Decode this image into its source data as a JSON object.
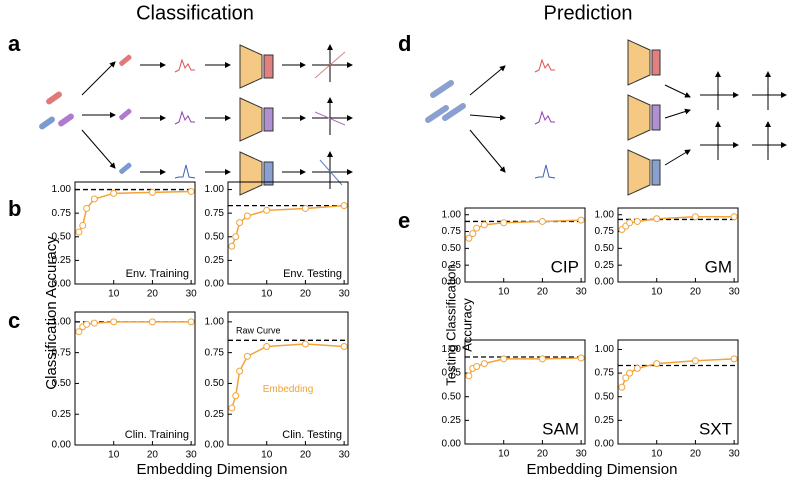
{
  "titles": {
    "left": "Classification",
    "right": "Prediction"
  },
  "panels": {
    "a": "a",
    "b": "b",
    "c": "c",
    "d": "d",
    "e": "e"
  },
  "axis_labels": {
    "left_y": "Classification Accuracy",
    "left_x": "Embedding Dimension",
    "right_y_1": "Testing Classification",
    "right_y_2": "Accuracy",
    "right_x": "Embedding Dimension"
  },
  "chart_data": [
    {
      "type": "line",
      "label": "Env. Training",
      "x": [
        1,
        2,
        3,
        5,
        10,
        20,
        30
      ],
      "series": [
        {
          "color": "#f2a33a",
          "values": [
            0.55,
            0.62,
            0.8,
            0.9,
            0.96,
            0.97,
            0.98
          ]
        }
      ],
      "reference_line": 1.0,
      "xlim": [
        0,
        31
      ],
      "ylim": [
        0,
        1.08
      ],
      "xticks": [
        10,
        20,
        30
      ],
      "yticks": [
        {
          "value": 0,
          "label": "0.00"
        },
        {
          "value": 0.25,
          "label": "0.25"
        },
        {
          "value": 0.5,
          "label": "0.50"
        },
        {
          "value": 0.75,
          "label": "0.75"
        },
        {
          "value": 1,
          "label": "1.00"
        }
      ]
    },
    {
      "type": "line",
      "label": "Env. Testing",
      "x": [
        1,
        2,
        3,
        5,
        10,
        20,
        30
      ],
      "series": [
        {
          "color": "#f2a33a",
          "values": [
            0.4,
            0.5,
            0.65,
            0.72,
            0.78,
            0.8,
            0.83
          ]
        }
      ],
      "reference_line": 0.83,
      "xlim": [
        0,
        31
      ],
      "ylim": [
        0,
        1.08
      ],
      "xticks": [
        10,
        20,
        30
      ],
      "yticks": [
        {
          "value": 0,
          "label": "0.00"
        },
        {
          "value": 0.25,
          "label": "0.25"
        },
        {
          "value": 0.5,
          "label": "0.50"
        },
        {
          "value": 0.75,
          "label": "0.75"
        },
        {
          "value": 1,
          "label": "1.00"
        }
      ]
    },
    {
      "type": "line",
      "label": "Clin. Training",
      "x": [
        1,
        2,
        3,
        5,
        10,
        20,
        30
      ],
      "series": [
        {
          "color": "#f2a33a",
          "values": [
            0.92,
            0.96,
            0.98,
            0.99,
            1.0,
            1.0,
            1.0
          ]
        }
      ],
      "reference_line": 1.0,
      "xlim": [
        0,
        31
      ],
      "ylim": [
        0,
        1.08
      ],
      "xticks": [
        10,
        20,
        30
      ],
      "yticks": [
        {
          "value": 0,
          "label": "0.00"
        },
        {
          "value": 0.25,
          "label": "0.25"
        },
        {
          "value": 0.5,
          "label": "0.50"
        },
        {
          "value": 0.75,
          "label": "0.75"
        },
        {
          "value": 1,
          "label": "1.00"
        }
      ]
    },
    {
      "type": "line",
      "label": "Clin. Testing",
      "annotations": [
        "Raw Curve",
        "Embedding"
      ],
      "x": [
        1,
        2,
        3,
        5,
        10,
        20,
        30
      ],
      "series": [
        {
          "color": "#f2a33a",
          "values": [
            0.3,
            0.4,
            0.6,
            0.72,
            0.8,
            0.82,
            0.8
          ]
        }
      ],
      "reference_line": 0.85,
      "xlim": [
        0,
        31
      ],
      "ylim": [
        0,
        1.08
      ],
      "xticks": [
        10,
        20,
        30
      ],
      "yticks": [
        {
          "value": 0,
          "label": "0.00"
        },
        {
          "value": 0.25,
          "label": "0.25"
        },
        {
          "value": 0.5,
          "label": "0.50"
        },
        {
          "value": 0.75,
          "label": "0.75"
        },
        {
          "value": 1,
          "label": "1.00"
        }
      ]
    },
    {
      "type": "line",
      "label": "CIP",
      "x": [
        1,
        2,
        3,
        5,
        10,
        20,
        30
      ],
      "series": [
        {
          "color": "#f2a33a",
          "values": [
            0.65,
            0.72,
            0.8,
            0.85,
            0.88,
            0.9,
            0.92
          ]
        }
      ],
      "reference_line": 0.9,
      "xlim": [
        0,
        31
      ],
      "ylim": [
        0,
        1.1
      ],
      "xticks": [
        10,
        20,
        30
      ],
      "yticks": [
        {
          "value": 0,
          "label": "0.00"
        },
        {
          "value": 0.25,
          "label": "0.25"
        },
        {
          "value": 0.5,
          "label": "0.50"
        },
        {
          "value": 0.75,
          "label": "0.75"
        },
        {
          "value": 1,
          "label": "1.00"
        }
      ]
    },
    {
      "type": "line",
      "label": "GM",
      "x": [
        1,
        2,
        3,
        5,
        10,
        20,
        30
      ],
      "series": [
        {
          "color": "#f2a33a",
          "values": [
            0.78,
            0.83,
            0.88,
            0.9,
            0.94,
            0.97,
            0.97
          ]
        }
      ],
      "reference_line": 0.93,
      "xlim": [
        0,
        31
      ],
      "ylim": [
        0,
        1.1
      ],
      "xticks": [
        10,
        20,
        30
      ],
      "yticks": [
        {
          "value": 0,
          "label": "0.00"
        },
        {
          "value": 0.25,
          "label": "0.25"
        },
        {
          "value": 0.5,
          "label": "0.50"
        },
        {
          "value": 0.75,
          "label": "0.75"
        },
        {
          "value": 1,
          "label": "1.00"
        }
      ]
    },
    {
      "type": "line",
      "label": "SAM",
      "x": [
        1,
        2,
        3,
        5,
        10,
        20,
        30
      ],
      "series": [
        {
          "color": "#f2a33a",
          "values": [
            0.72,
            0.8,
            0.82,
            0.85,
            0.9,
            0.9,
            0.91
          ]
        }
      ],
      "reference_line": 0.92,
      "xlim": [
        0,
        31
      ],
      "ylim": [
        0,
        1.1
      ],
      "xticks": [
        10,
        20,
        30
      ],
      "yticks": [
        {
          "value": 0,
          "label": "0.00"
        },
        {
          "value": 0.25,
          "label": "0.25"
        },
        {
          "value": 0.5,
          "label": "0.50"
        },
        {
          "value": 0.75,
          "label": "0.75"
        },
        {
          "value": 1,
          "label": "1.00"
        }
      ]
    },
    {
      "type": "line",
      "label": "SXT",
      "x": [
        1,
        2,
        3,
        5,
        10,
        20,
        30
      ],
      "series": [
        {
          "color": "#f2a33a",
          "values": [
            0.6,
            0.7,
            0.75,
            0.8,
            0.85,
            0.88,
            0.9
          ]
        }
      ],
      "reference_line": 0.83,
      "xlim": [
        0,
        31
      ],
      "ylim": [
        0,
        1.1
      ],
      "xticks": [
        10,
        20,
        30
      ],
      "yticks": [
        {
          "value": 0,
          "label": "0.00"
        },
        {
          "value": 0.25,
          "label": "0.25"
        },
        {
          "value": 0.5,
          "label": "0.50"
        },
        {
          "value": 0.75,
          "label": "0.75"
        },
        {
          "value": 1,
          "label": "1.00"
        }
      ]
    }
  ]
}
